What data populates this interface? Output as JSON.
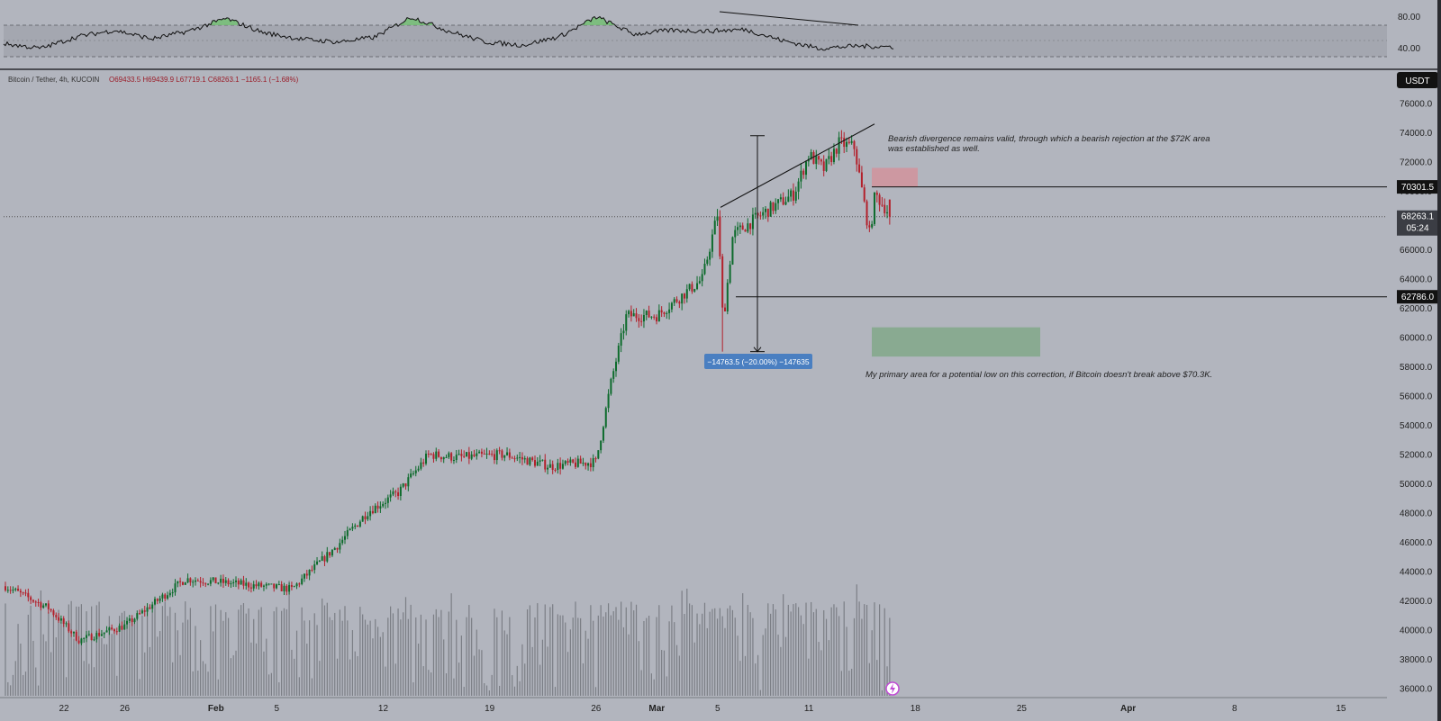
{
  "header": {
    "symbol": "Bitcoin / Tether, 4h, KUCOIN",
    "ohlc": "O69433.5  H69439.9  L67719.1  C68263.1  −1165.1 (−1.68%)"
  },
  "price_axis": {
    "currency": "USDT",
    "ticks": [
      "76000.0",
      "74000.0",
      "72000.0",
      "70000.0",
      "68000.0",
      "66000.0",
      "64000.0",
      "62000.0",
      "60000.0",
      "58000.0",
      "56000.0",
      "54000.0",
      "52000.0",
      "50000.0",
      "48000.0",
      "46000.0",
      "44000.0",
      "42000.0",
      "40000.0",
      "38000.0",
      "36000.0"
    ],
    "level_high": "70301.5",
    "level_low": "62786.0",
    "last_price": "68263.1",
    "countdown": "05:24"
  },
  "rsi_axis": {
    "ticks": [
      "80.00",
      "40.00"
    ]
  },
  "time_axis": {
    "ticks": [
      "22",
      "26",
      "Feb",
      "5",
      "12",
      "19",
      "26",
      "Mar",
      "5",
      "11",
      "18",
      "25",
      "Apr",
      "8",
      "15"
    ]
  },
  "annotations": {
    "measure_label": "−14763.5 (−20.00%) −147635",
    "note_top": "Bearish divergence remains valid, through which a bearish rejection at the $72K area\nwas established as well.",
    "note_bottom": "My primary area for a potential low on this correction, if Bitcoin doesn't break above $70.3K."
  },
  "colors": {
    "background": "#b2b5be",
    "up": "#0d6b2c",
    "down": "#b3202b",
    "rsi_line": "#111111",
    "rsi_fill": "#6fbf6f",
    "supply_zone": "#d68f97",
    "demand_zone": "#7ea886",
    "measure_box": "#4a7fc1",
    "label_bg": "#121212"
  },
  "chart_data": {
    "type": "candlestick",
    "interval": "4h",
    "ylim": [
      35000,
      77500
    ],
    "rsi_ylim": [
      20,
      90
    ],
    "rsi_bands": [
      70,
      30
    ],
    "key_points": [
      {
        "date": "Jan 18",
        "close": 43000
      },
      {
        "date": "Jan 21",
        "close": 41500
      },
      {
        "date": "Jan 23",
        "close": 39300
      },
      {
        "date": "Jan 26",
        "close": 40300
      },
      {
        "date": "Jan 30",
        "close": 43500
      },
      {
        "date": "Feb 6",
        "close": 42800
      },
      {
        "date": "Feb 9",
        "close": 45800
      },
      {
        "date": "Feb 11",
        "close": 48100
      },
      {
        "date": "Feb 13",
        "close": 49400
      },
      {
        "date": "Feb 15",
        "close": 52000
      },
      {
        "date": "Feb 17",
        "close": 51800
      },
      {
        "date": "Feb 20",
        "close": 52000
      },
      {
        "date": "Feb 23",
        "close": 51200
      },
      {
        "date": "Feb 26",
        "close": 51500
      },
      {
        "date": "Feb 27",
        "close": 57000
      },
      {
        "date": "Feb 28",
        "close": 61500
      },
      {
        "date": "Mar 1",
        "close": 61500
      },
      {
        "date": "Mar 4",
        "close": 64000
      },
      {
        "date": "Mar 5",
        "close": 68500
      },
      {
        "date": "Mar 5",
        "close": 61000
      },
      {
        "date": "Mar 6",
        "close": 67000
      },
      {
        "date": "Mar 8",
        "close": 68500
      },
      {
        "date": "Mar 10",
        "close": 69800
      },
      {
        "date": "Mar 11",
        "close": 72500
      },
      {
        "date": "Mar 12",
        "close": 71500
      },
      {
        "date": "Mar 13",
        "close": 73300
      },
      {
        "date": "Mar 14",
        "close": 73000
      },
      {
        "date": "Mar 15",
        "close": 67000
      },
      {
        "date": "Mar 15",
        "close": 69800
      },
      {
        "date": "Mar 16",
        "close": 68263.1
      }
    ],
    "rsi_key_points": [
      46,
      40,
      55,
      63,
      52,
      62,
      78,
      60,
      52,
      48,
      54,
      80,
      62,
      48,
      44,
      55,
      80,
      58,
      63,
      62,
      64,
      50,
      40,
      43,
      42
    ],
    "ranges": {
      "measure": {
        "from": 73800,
        "to": 59037,
        "label": "−14763.5 (−20.00%) −147635"
      },
      "supply_zone": [
        70300,
        71600
      ],
      "demand_zone": [
        58700,
        60700
      ]
    }
  }
}
